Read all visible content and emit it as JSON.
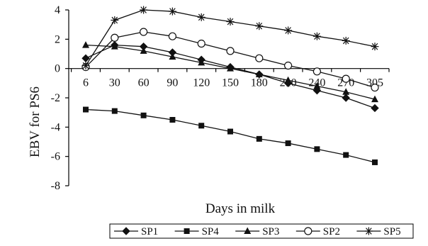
{
  "chart_data": {
    "type": "line",
    "title": "",
    "xlabel": "Days in milk",
    "ylabel": "EBV for PS6",
    "categories": [
      "6",
      "30",
      "60",
      "90",
      "120",
      "150",
      "180",
      "210",
      "240",
      "270",
      "305"
    ],
    "ylim": [
      -8,
      4
    ],
    "yticks": [
      4,
      2,
      0,
      -2,
      -4,
      -6,
      -8
    ],
    "grid": false,
    "legend_position": "bottom",
    "series": [
      {
        "name": "SP1",
        "marker": "diamond",
        "values": [
          0.7,
          1.6,
          1.5,
          1.1,
          0.6,
          0.1,
          -0.4,
          -1.0,
          -1.5,
          -2.0,
          -2.7
        ]
      },
      {
        "name": "SP4",
        "marker": "square",
        "values": [
          -2.8,
          -2.9,
          -3.2,
          -3.5,
          -3.9,
          -4.3,
          -4.8,
          -5.1,
          -5.5,
          -5.9,
          -6.4
        ]
      },
      {
        "name": "SP3",
        "marker": "triangle",
        "values": [
          1.6,
          1.5,
          1.2,
          0.8,
          0.4,
          0.0,
          -0.4,
          -0.8,
          -1.2,
          -1.6,
          -2.1
        ]
      },
      {
        "name": "SP2",
        "marker": "circle",
        "values": [
          0.1,
          2.1,
          2.5,
          2.2,
          1.7,
          1.2,
          0.7,
          0.2,
          -0.2,
          -0.7,
          -1.3
        ]
      },
      {
        "name": "SP5",
        "marker": "star",
        "values": [
          0.2,
          3.3,
          4.0,
          3.9,
          3.5,
          3.2,
          2.9,
          2.6,
          2.2,
          1.9,
          1.5
        ]
      }
    ]
  }
}
